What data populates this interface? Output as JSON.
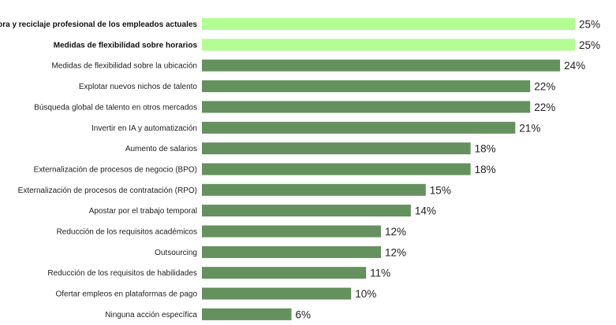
{
  "chart_data": {
    "type": "bar",
    "orientation": "horizontal",
    "categories": [
      "Mejora y reciclaje profesional de los empleados actuales",
      "Medidas de flexibilidad sobre horarios",
      "Medidas de flexibilidad sobre la ubicación",
      "Explotar nuevos nichos de talento",
      "Búsqueda global de talento en otros mercados",
      "Invertir en IA y automatización",
      "Aumento de salarios",
      "Externalización de procesos de negocio (BPO)",
      "Externalización de procesos de contratación (RPO)",
      "Apostar por el trabajo temporal",
      "Reducción de los requisitos académicos",
      "Outsourcing",
      "Reducción de los requisitos de habilidades",
      "Ofertar empleos en plataformas de pago",
      "Ninguna acción específica"
    ],
    "values": [
      25,
      25,
      24,
      22,
      22,
      21,
      18,
      18,
      15,
      14,
      12,
      12,
      11,
      10,
      6
    ],
    "value_labels": [
      "25%",
      "25%",
      "24%",
      "22%",
      "22%",
      "21%",
      "18%",
      "18%",
      "15%",
      "14%",
      "12%",
      "12%",
      "11%",
      "10%",
      "6%"
    ],
    "highlighted": [
      true,
      true,
      false,
      false,
      false,
      false,
      false,
      false,
      false,
      false,
      false,
      false,
      false,
      false,
      false
    ],
    "colors": {
      "highlight": "#b3fd93",
      "default": "#64915d"
    },
    "xlim": [
      0,
      25
    ],
    "grid": false,
    "legend": "none",
    "title": "",
    "xlabel": "",
    "ylabel": ""
  }
}
